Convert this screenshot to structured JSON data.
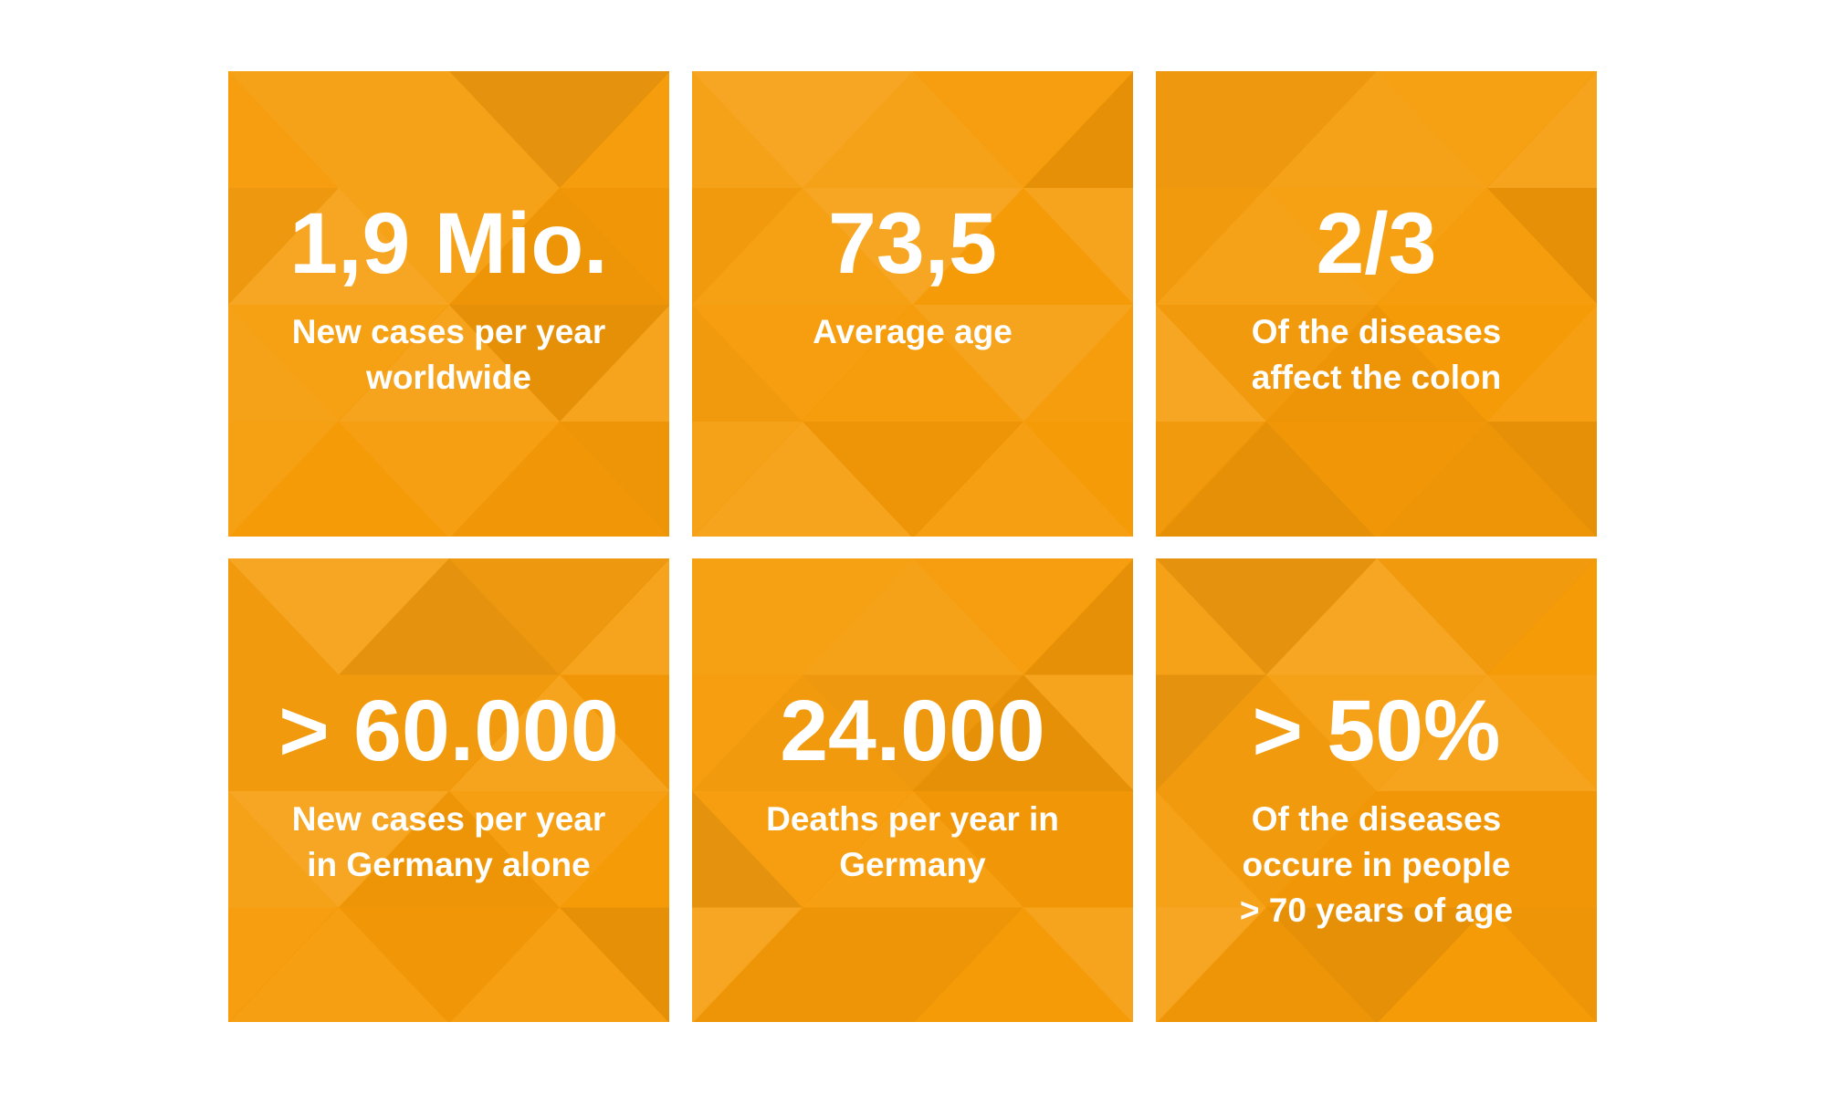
{
  "page": {
    "kind": "statistics-infographic",
    "background": "#ffffff"
  },
  "colors": {
    "tile_base": "#f69b08",
    "tile_light": "#f9a81f",
    "tile_dark": "#ee8f00",
    "text": "#ffffff"
  },
  "tiles": [
    {
      "id": "new-cases-worldwide",
      "number": "1,9 Mio.",
      "subtitle_lines": [
        "New cases per year",
        "worldwide"
      ]
    },
    {
      "id": "average-age",
      "number": "73,5",
      "subtitle_lines": [
        "Average age"
      ]
    },
    {
      "id": "diseases-affect-colon",
      "number": "2/3",
      "subtitle_lines": [
        "Of the diseases",
        "affect the colon"
      ]
    },
    {
      "id": "new-cases-germany",
      "number": "> 60.000",
      "subtitle_lines": [
        "New cases per year",
        "in Germany alone"
      ]
    },
    {
      "id": "deaths-germany",
      "number": "24.000",
      "subtitle_lines": [
        "Deaths per year in",
        "Germany"
      ]
    },
    {
      "id": "diseases-over-70",
      "number": "> 50%",
      "subtitle_lines": [
        "Of the diseases",
        "occure in people",
        "> 70 years of age"
      ]
    }
  ],
  "chart_data": {
    "type": "table",
    "title": "",
    "layout": "2 rows x 3 columns of stat tiles",
    "items": [
      {
        "value": "1,9 Mio.",
        "label": "New cases per year worldwide"
      },
      {
        "value": "73,5",
        "label": "Average age"
      },
      {
        "value": "2/3",
        "label": "Of the diseases affect the colon"
      },
      {
        "value": "> 60.000",
        "label": "New cases per year in Germany alone"
      },
      {
        "value": "24.000",
        "label": "Deaths per year in Germany"
      },
      {
        "value": "> 50%",
        "label": "Of the diseases occure in people > 70 years of age"
      }
    ]
  }
}
